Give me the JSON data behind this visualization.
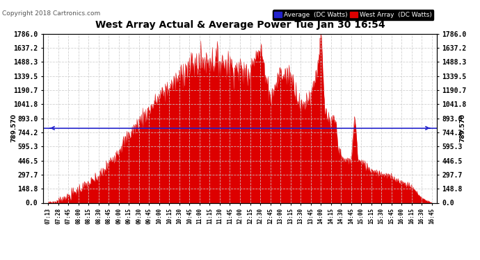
{
  "title": "West Array Actual & Average Power Tue Jan 30 16:54",
  "copyright": "Copyright 2018 Cartronics.com",
  "average_value": 789.57,
  "yticks": [
    0.0,
    148.8,
    297.7,
    446.5,
    595.3,
    744.2,
    893.0,
    1041.8,
    1190.7,
    1339.5,
    1488.3,
    1637.2,
    1786.0
  ],
  "ymax": 1786.0,
  "ymin": 0.0,
  "xtick_labels": [
    "07:13",
    "07:28",
    "07:45",
    "08:00",
    "08:15",
    "08:30",
    "08:45",
    "09:00",
    "09:15",
    "09:30",
    "09:45",
    "10:00",
    "10:15",
    "10:30",
    "10:45",
    "11:00",
    "11:15",
    "11:30",
    "11:45",
    "12:00",
    "12:15",
    "12:30",
    "12:45",
    "13:00",
    "13:15",
    "13:30",
    "13:45",
    "14:00",
    "14:15",
    "14:30",
    "14:45",
    "15:00",
    "15:15",
    "15:30",
    "15:45",
    "16:00",
    "16:15",
    "16:30",
    "16:45"
  ],
  "fill_color": "#dd0000",
  "average_line_color": "#2222cc",
  "bg_color": "#ffffff",
  "grid_color": "#bbbbbb",
  "title_color": "#000000"
}
